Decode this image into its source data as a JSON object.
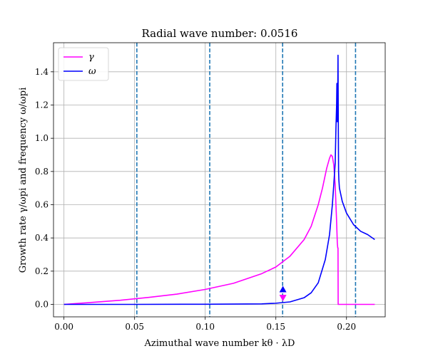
{
  "chart_data": {
    "type": "line",
    "title": "Radial wave number: 0.0516",
    "xlabel": "Azimuthal wave number kθ · λD",
    "ylabel": "Growth rate γ/ωpi and frequency ω/ωpi",
    "xlim": [
      -0.0074,
      0.2274
    ],
    "ylim": [
      -0.075,
      1.575
    ],
    "xticks": [
      0.0,
      0.05,
      0.1,
      0.15,
      0.2
    ],
    "xtick_labels": [
      "0.00",
      "0.05",
      "0.10",
      "0.15",
      "0.20"
    ],
    "yticks": [
      0.0,
      0.2,
      0.4,
      0.6,
      0.8,
      1.0,
      1.2,
      1.4
    ],
    "ytick_labels": [
      "0.0",
      "0.2",
      "0.4",
      "0.6",
      "0.8",
      "1.0",
      "1.2",
      "1.4"
    ],
    "grid": true,
    "legend_position": "top-left",
    "vlines": [
      0.0516,
      0.1032,
      0.1548,
      0.2064
    ],
    "vline_color": "#1f77b4",
    "markers": [
      {
        "series": "ω",
        "x": 0.155,
        "y": 0.09,
        "shape": "triangle-up"
      },
      {
        "series": "γ",
        "x": 0.155,
        "y": 0.04,
        "shape": "triangle-down"
      }
    ],
    "series": [
      {
        "name": "γ",
        "color": "#ff00ff",
        "x": [
          0.0,
          0.02,
          0.04,
          0.06,
          0.08,
          0.1,
          0.12,
          0.14,
          0.15,
          0.16,
          0.17,
          0.175,
          0.18,
          0.183,
          0.186,
          0.188,
          0.189,
          0.19,
          0.191,
          0.192,
          0.193,
          0.1935,
          0.1938,
          0.194,
          0.1941,
          0.196,
          0.2,
          0.21,
          0.22
        ],
        "y": [
          0.0,
          0.012,
          0.025,
          0.042,
          0.062,
          0.09,
          0.127,
          0.185,
          0.225,
          0.29,
          0.39,
          0.47,
          0.6,
          0.7,
          0.82,
          0.88,
          0.9,
          0.89,
          0.84,
          0.72,
          0.5,
          0.37,
          0.34,
          0.34,
          0.0,
          0.0,
          0.0,
          0.0,
          0.0
        ]
      },
      {
        "name": "ω",
        "color": "#0000ff",
        "x": [
          0.0,
          0.05,
          0.1,
          0.14,
          0.15,
          0.16,
          0.17,
          0.175,
          0.18,
          0.185,
          0.188,
          0.19,
          0.191,
          0.192,
          0.1925,
          0.193,
          0.1932,
          0.1934,
          0.1936,
          0.1938,
          0.194,
          0.1942,
          0.1944,
          0.1946,
          0.195,
          0.197,
          0.2,
          0.205,
          0.21,
          0.215,
          0.22
        ],
        "y": [
          0.0,
          0.0,
          0.001,
          0.003,
          0.007,
          0.015,
          0.04,
          0.07,
          0.13,
          0.27,
          0.42,
          0.6,
          0.72,
          0.85,
          1.05,
          1.2,
          1.33,
          1.1,
          1.1,
          1.25,
          1.5,
          1.1,
          0.8,
          0.75,
          0.7,
          0.62,
          0.55,
          0.48,
          0.44,
          0.42,
          0.39
        ]
      }
    ]
  }
}
